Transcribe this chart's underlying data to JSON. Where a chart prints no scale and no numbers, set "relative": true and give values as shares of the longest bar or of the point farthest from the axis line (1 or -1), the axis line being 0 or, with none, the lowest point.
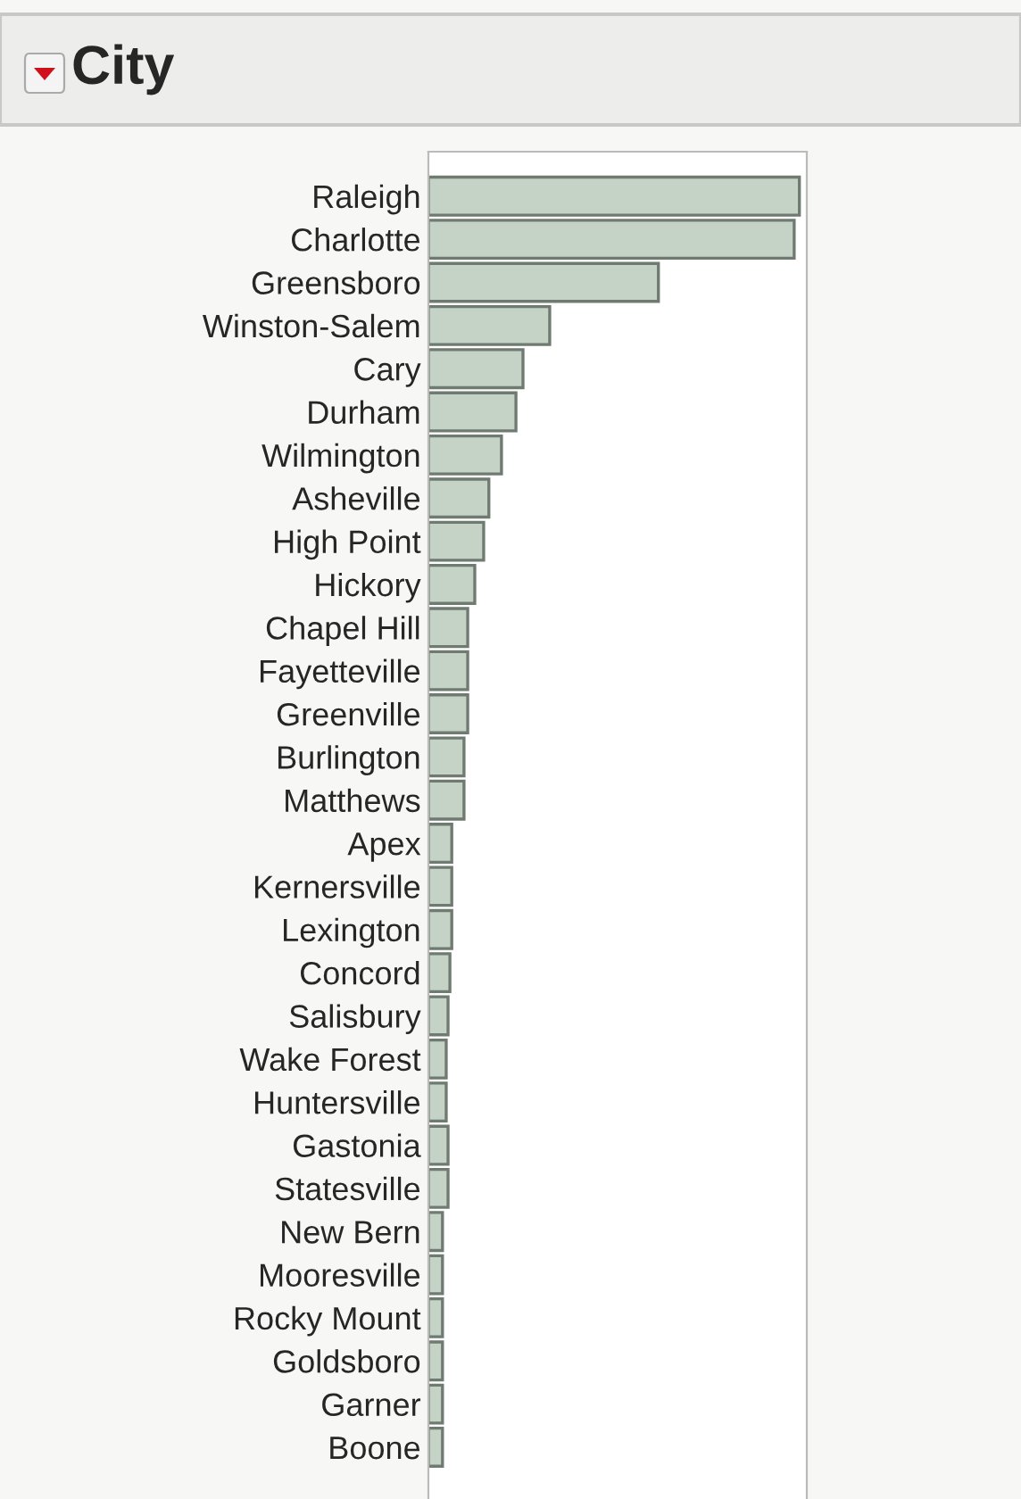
{
  "chart_data": {
    "type": "bar",
    "orientation": "horizontal",
    "relative": true,
    "title": "City",
    "color": "#c5d3c7",
    "categories": [
      "Raleigh",
      "Charlotte",
      "Greensboro",
      "Winston-Salem",
      "Cary",
      "Durham",
      "Wilmington",
      "Asheville",
      "High Point",
      "Hickory",
      "Chapel Hill",
      "Fayetteville",
      "Greenville",
      "Burlington",
      "Matthews",
      "Apex",
      "Kernersville",
      "Lexington",
      "Concord",
      "Salisbury",
      "Wake Forest",
      "Huntersville",
      "Gastonia",
      "Statesville",
      "New Bern",
      "Mooresville",
      "Rocky Mount",
      "Goldsboro",
      "Garner",
      "Boone"
    ],
    "values": [
      1,
      0.986,
      0.62,
      0.327,
      0.255,
      0.236,
      0.197,
      0.163,
      0.149,
      0.125,
      0.106,
      0.106,
      0.106,
      0.096,
      0.096,
      0.063,
      0.063,
      0.063,
      0.058,
      0.053,
      0.048,
      0.048,
      0.053,
      0.053,
      0.038,
      0.038,
      0.038,
      0.038,
      0.038,
      0.038
    ]
  }
}
